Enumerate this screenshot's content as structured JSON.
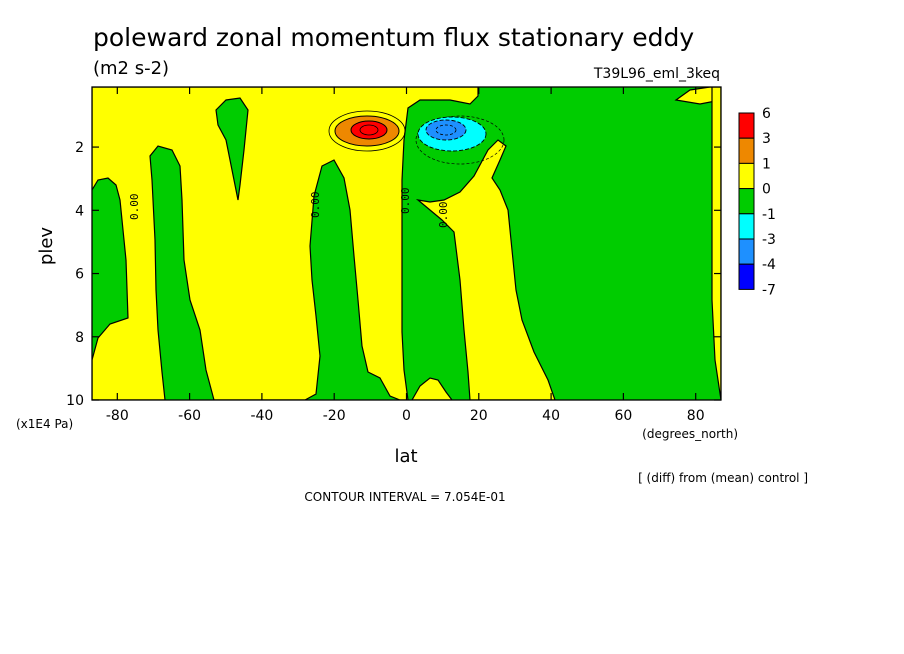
{
  "header": {
    "title": "poleward zonal momentum flux stationary eddy",
    "units": "(m2 s-2)",
    "experiment": "T39L96_eml_3keq"
  },
  "footer": {
    "diff_note": "[ (diff) from (mean) control ]",
    "contour_interval": "CONTOUR INTERVAL = 7.054E-01"
  },
  "chart_data": {
    "type": "heatmap",
    "title": "poleward zonal momentum flux stationary eddy",
    "subtitle": "(m2 s-2)",
    "xlabel": "lat",
    "xunits": "(degrees_north)",
    "ylabel": "plev",
    "yunits": "(x1E4 Pa)",
    "xlim": [
      -87,
      87
    ],
    "ylim": [
      0.1,
      10
    ],
    "y_inverted": true,
    "x_ticks": [
      -80,
      -60,
      -40,
      -20,
      0,
      20,
      40,
      60,
      80
    ],
    "y_ticks": [
      2,
      4,
      6,
      8,
      10
    ],
    "x_tick_labels": [
      "-80",
      "-60",
      "-40",
      "-20",
      "0",
      "20",
      "40",
      "60",
      "80"
    ],
    "y_tick_labels": [
      "2",
      "4",
      "6",
      "8",
      "10"
    ],
    "contour_interval": 0.7054,
    "legend": {
      "placement": "right",
      "levels": [
        "6",
        "3",
        "1",
        "0",
        "-1",
        "-3",
        "-4",
        "-7"
      ],
      "colors": [
        "#ff0000",
        "#ee8800",
        "#ffff00",
        "#00cc00",
        "#00ffff",
        "#1e90ff",
        "#0000ff"
      ]
    },
    "contour_labels": [
      {
        "text": "0.00",
        "lat": -75.5,
        "plev": 4.3
      },
      {
        "text": "0.00",
        "lat": -25,
        "plev": 4.1
      },
      {
        "text": "0.00",
        "lat": 0,
        "plev": 4.0
      },
      {
        "text": "0.00",
        "lat": 10,
        "plev": 4.6
      }
    ],
    "features": [
      {
        "sign": "positive",
        "peak": 6,
        "lat": -10,
        "plev": 1.5
      },
      {
        "sign": "negative",
        "peak": -3,
        "lat": 11,
        "plev": 1.5
      }
    ]
  }
}
